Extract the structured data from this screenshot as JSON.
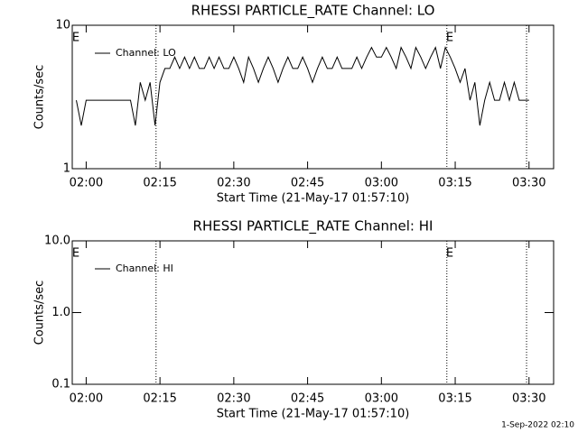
{
  "chart_data": [
    {
      "type": "line",
      "title": "RHESSI PARTICLE_RATE Channel: LO",
      "xlabel": "Start Time (21-May-17 01:57:10)",
      "ylabel": "Counts/sec",
      "x": [
        118,
        119,
        120,
        121,
        122,
        123,
        124,
        125,
        126,
        127,
        128,
        129,
        130,
        131,
        132,
        133,
        134,
        135,
        136,
        137,
        138,
        139,
        140,
        141,
        142,
        143,
        144,
        145,
        146,
        147,
        148,
        149,
        150,
        151,
        152,
        153,
        154,
        155,
        156,
        157,
        158,
        159,
        160,
        161,
        162,
        163,
        164,
        165,
        166,
        167,
        168,
        169,
        170,
        171,
        172,
        173,
        174,
        175,
        176,
        177,
        178,
        179,
        180,
        181,
        182,
        183,
        184,
        185,
        186,
        187,
        188,
        189,
        190,
        191,
        192,
        193,
        194,
        195,
        196,
        197,
        198,
        199,
        200,
        201,
        202,
        203,
        204,
        205,
        206,
        207,
        208,
        209,
        210
      ],
      "series": [
        {
          "name": "Channel: LO",
          "color": "#000000",
          "values": [
            3,
            2,
            3,
            3,
            3,
            3,
            3,
            3,
            3,
            3,
            3,
            3,
            2,
            4,
            3,
            4,
            2,
            4,
            5,
            5,
            6,
            5,
            6,
            5,
            6,
            5,
            5,
            6,
            5,
            6,
            5,
            5,
            6,
            5,
            4,
            6,
            5,
            4,
            5,
            6,
            5,
            4,
            5,
            6,
            5,
            5,
            6,
            5,
            4,
            5,
            6,
            5,
            5,
            6,
            5,
            5,
            5,
            6,
            5,
            6,
            7,
            6,
            6,
            7,
            6,
            5,
            7,
            6,
            5,
            7,
            6,
            5,
            6,
            7,
            5,
            7,
            6,
            5,
            4,
            5,
            3,
            4,
            2,
            3,
            4,
            3,
            3,
            4,
            3,
            4,
            3,
            3,
            3
          ]
        }
      ],
      "xlim": [
        117.17,
        215
      ],
      "xticks": [
        {
          "value": 120,
          "label": "02:00"
        },
        {
          "value": 135,
          "label": "02:15"
        },
        {
          "value": 150,
          "label": "02:30"
        },
        {
          "value": 165,
          "label": "02:45"
        },
        {
          "value": 180,
          "label": "03:00"
        },
        {
          "value": 195,
          "label": "03:15"
        },
        {
          "value": 210,
          "label": "03:30"
        }
      ],
      "ylim": [
        1,
        10
      ],
      "yticks": [
        1,
        10
      ],
      "log_y": true,
      "event_lines": [
        134.2,
        193.3,
        209.5
      ],
      "event_labels": [
        {
          "x": 117.9,
          "label": "E"
        },
        {
          "x": 193.9,
          "label": "E"
        }
      ]
    },
    {
      "type": "line",
      "title": "RHESSI PARTICLE_RATE Channel: HI",
      "xlabel": "Start Time (21-May-17 01:57:10)",
      "ylabel": "Counts/sec",
      "x": [],
      "series": [
        {
          "name": "Channel: HI",
          "color": "#000000",
          "values": []
        }
      ],
      "xlim": [
        117.17,
        215
      ],
      "xticks": [
        {
          "value": 120,
          "label": "02:00"
        },
        {
          "value": 135,
          "label": "02:15"
        },
        {
          "value": 150,
          "label": "02:30"
        },
        {
          "value": 165,
          "label": "02:45"
        },
        {
          "value": 180,
          "label": "03:00"
        },
        {
          "value": 195,
          "label": "03:15"
        },
        {
          "value": 210,
          "label": "03:30"
        }
      ],
      "ylim": [
        0.1,
        10
      ],
      "yticks": [
        {
          "value": 0.1,
          "label": "0.1"
        },
        {
          "value": 1,
          "label": "1.0"
        },
        {
          "value": 10,
          "label": "10.0"
        }
      ],
      "log_y": true,
      "event_lines": [
        134.2,
        193.3,
        209.5
      ],
      "event_labels": [
        {
          "x": 117.9,
          "label": "E"
        },
        {
          "x": 193.9,
          "label": "E"
        }
      ]
    }
  ],
  "footer": "1-Sep-2022 02:10"
}
